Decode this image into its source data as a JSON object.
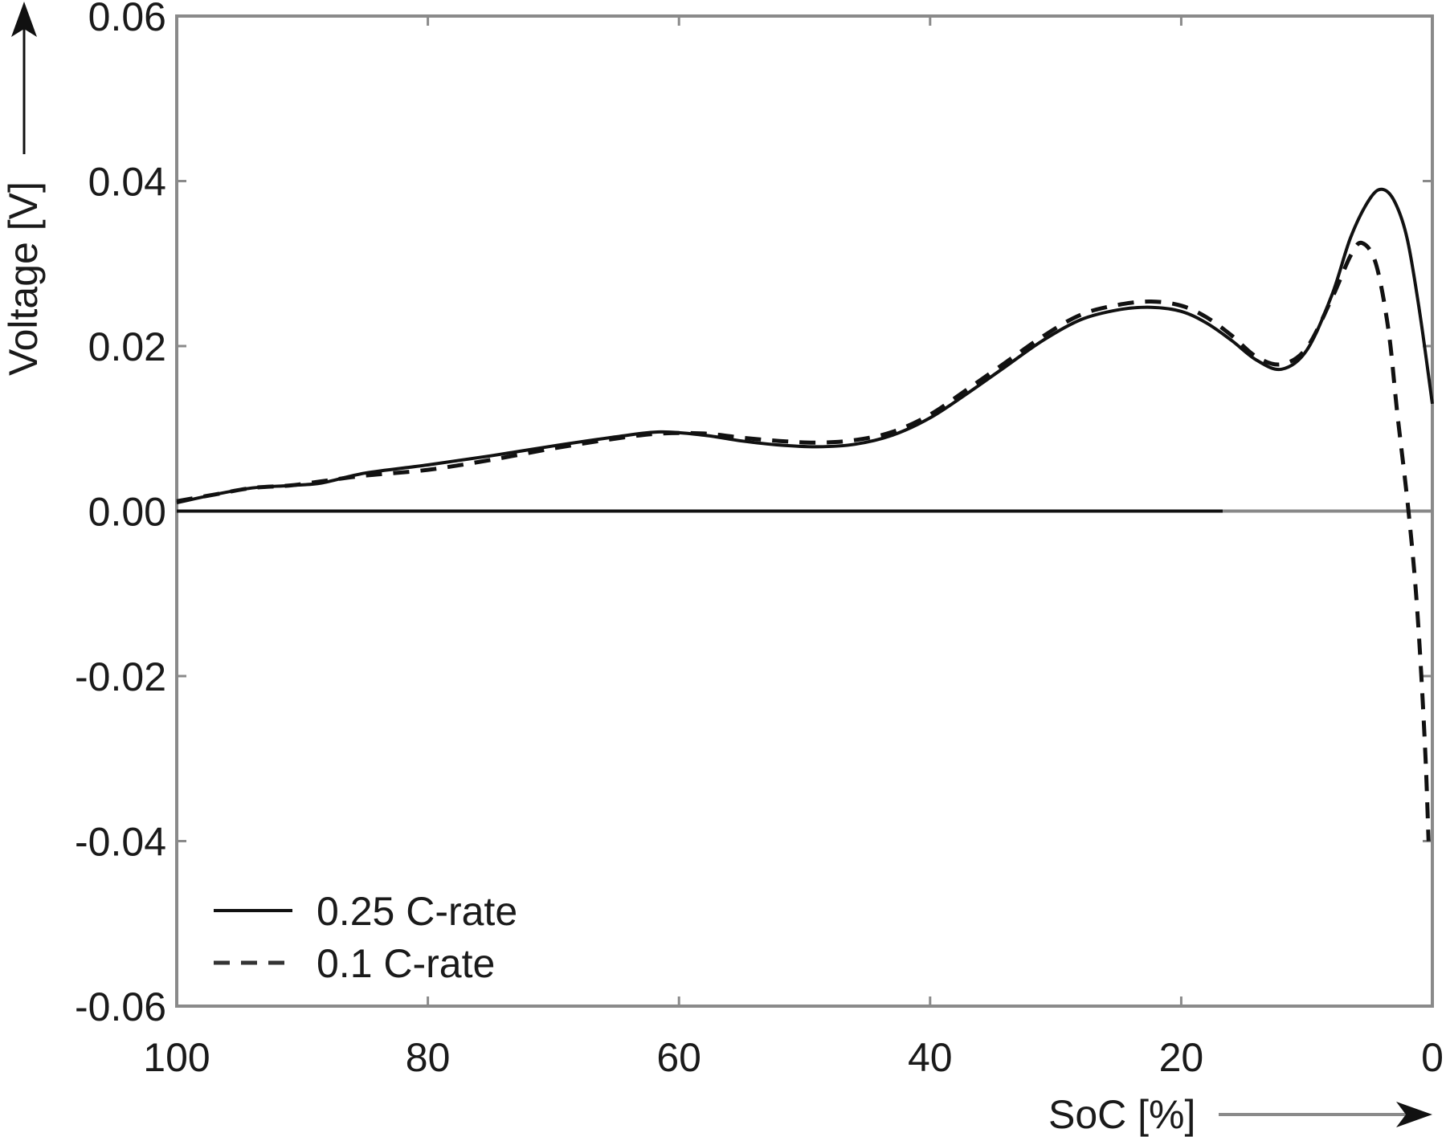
{
  "chart_data": {
    "type": "line",
    "title": "",
    "xlabel": "SoC [%]",
    "ylabel": "Voltage [V]",
    "xlim": [
      100,
      0
    ],
    "ylim": [
      -0.06,
      0.06
    ],
    "x_reversed": true,
    "grid": false,
    "legend_position": "lower left",
    "x_ticks": [
      "100",
      "80",
      "60",
      "40",
      "20",
      "0"
    ],
    "x_tick_values": [
      100,
      80,
      60,
      40,
      20,
      0
    ],
    "y_ticks": [
      "0.06",
      "0.04",
      "0.02",
      "0.00",
      "-0.02",
      "-0.04",
      "-0.06"
    ],
    "y_tick_values": [
      0.06,
      0.04,
      0.02,
      0.0,
      -0.02,
      -0.04,
      -0.06
    ],
    "series": [
      {
        "name": "0.25 C-rate",
        "style": "solid",
        "color": "#111111",
        "x": [
          100,
          97,
          94,
          91,
          88.5,
          85,
          80,
          75,
          70,
          65,
          61.5,
          58,
          55,
          52,
          49,
          46,
          43,
          40,
          37,
          34,
          31,
          28,
          25,
          22.4,
          20,
          18,
          16,
          14,
          12,
          10,
          8,
          6.5,
          5,
          4,
          3,
          2,
          1,
          0
        ],
        "y": [
          0.001,
          0.002,
          0.0028,
          0.0031,
          0.0034,
          0.0046,
          0.0056,
          0.0067,
          0.0079,
          0.009,
          0.0096,
          0.0092,
          0.0085,
          0.008,
          0.0078,
          0.0081,
          0.0092,
          0.0113,
          0.0143,
          0.0175,
          0.0207,
          0.0232,
          0.0244,
          0.0247,
          0.0242,
          0.0228,
          0.0207,
          0.0183,
          0.0172,
          0.0195,
          0.0262,
          0.0332,
          0.0378,
          0.039,
          0.0375,
          0.033,
          0.024,
          0.013
        ]
      },
      {
        "name": "0.1 C-rate",
        "style": "dashed",
        "color": "#111111",
        "x": [
          100,
          97,
          94,
          91,
          88.5,
          85,
          80,
          75,
          70,
          65,
          61.5,
          58,
          55,
          52,
          49,
          46,
          43,
          40,
          37,
          34,
          31,
          28,
          25,
          22.4,
          20,
          18,
          16,
          14,
          12,
          10,
          8,
          6.5,
          5.6,
          4.5,
          3.5,
          2.8,
          1.9,
          1.2,
          0.6,
          0.3
        ],
        "y": [
          0.0012,
          0.002,
          0.0028,
          0.0031,
          0.0036,
          0.0043,
          0.005,
          0.0062,
          0.0076,
          0.0088,
          0.0094,
          0.0094,
          0.0089,
          0.0085,
          0.0083,
          0.0086,
          0.0096,
          0.0117,
          0.0148,
          0.018,
          0.0212,
          0.0238,
          0.025,
          0.0254,
          0.0249,
          0.0235,
          0.0213,
          0.0187,
          0.0178,
          0.0198,
          0.0258,
          0.031,
          0.0325,
          0.03,
          0.022,
          0.012,
          0.0,
          -0.012,
          -0.028,
          -0.04
        ]
      }
    ],
    "reference_lines": [
      {
        "name": "zero-line",
        "y": 0.0,
        "x_from": 100,
        "x_to": 0,
        "color": "#888888"
      },
      {
        "name": "zero-line-dark",
        "y": 0.0,
        "x_from": 100,
        "x_to": 16.7,
        "color": "#111111"
      }
    ],
    "annotations": [
      {
        "type": "arrow",
        "axis": "x",
        "direction": "right",
        "near": "xlabel"
      },
      {
        "type": "arrow",
        "axis": "y",
        "direction": "up",
        "near": "ylabel"
      }
    ]
  },
  "legend": {
    "items": [
      {
        "label": "0.25 C-rate",
        "style": "solid"
      },
      {
        "label": "0.1 C-rate",
        "style": "dashed"
      }
    ]
  },
  "colors": {
    "axis": "#8a8a8a",
    "line": "#111111",
    "text": "#1a1a1a",
    "background": "#ffffff"
  }
}
